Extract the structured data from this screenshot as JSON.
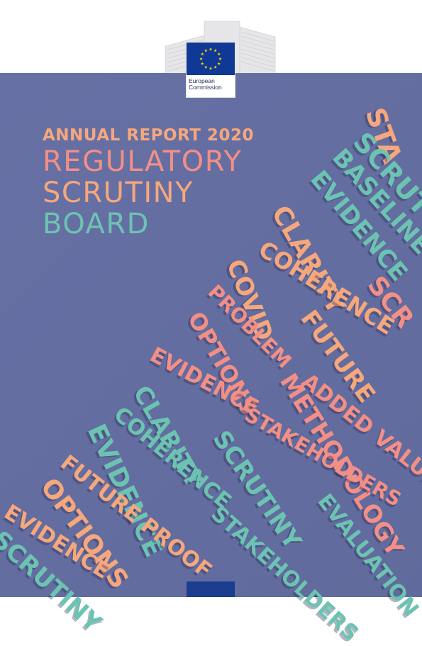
{
  "logo": {
    "name_line1": "European",
    "name_line2": "Commission",
    "flag_color": "#103996",
    "star_color": "#ffd400"
  },
  "headline": {
    "subtitle": "ANNUAL REPORT 2020",
    "line1": "REGULATORY",
    "line2": "SCRUTINY",
    "line3": "BOARD"
  },
  "colors": {
    "background": "#6670a4",
    "salmon": "#f28f86",
    "peach": "#f5a77d",
    "teal": "#6cc3b2",
    "bottom_tab": "#1c3c90"
  },
  "word_stairs": [
    {
      "text": "STA",
      "color": "peach"
    },
    {
      "text": "SCRUT",
      "color": "teal"
    },
    {
      "text": "BASELINE",
      "color": "teal"
    },
    {
      "text": "EVIDENCE",
      "color": "teal"
    },
    {
      "text": "CLARITY",
      "color": "peach"
    },
    {
      "text": "SCR",
      "color": "salmon"
    },
    {
      "text": "COHERENCE",
      "color": "peach"
    },
    {
      "text": "COVID",
      "color": "peach"
    },
    {
      "text": "FUTURE",
      "color": "peach"
    },
    {
      "text": "PROBLEM",
      "color": "salmon"
    },
    {
      "text": "OPTIONS",
      "color": "salmon"
    },
    {
      "text": "ADDED VALUE",
      "color": "salmon"
    },
    {
      "text": "EVIDENCE",
      "color": "salmon"
    },
    {
      "text": "METHODOLOGY",
      "color": "salmon"
    },
    {
      "text": "CLARITY",
      "color": "teal"
    },
    {
      "text": "STAKEHOLDERS",
      "color": "salmon"
    },
    {
      "text": "COHERENCE",
      "color": "teal"
    },
    {
      "text": "EVIDENCE",
      "color": "teal"
    },
    {
      "text": "SCRUTINY",
      "color": "teal"
    },
    {
      "text": "EVALUATION",
      "color": "teal"
    },
    {
      "text": "FUTURE PROOF",
      "color": "peach"
    },
    {
      "text": "OPTIONS",
      "color": "peach"
    },
    {
      "text": "STAKEHOLDERS",
      "color": "teal"
    },
    {
      "text": "EVIDENCE",
      "color": "peach"
    },
    {
      "text": "SCRUTINY",
      "color": "teal"
    }
  ]
}
